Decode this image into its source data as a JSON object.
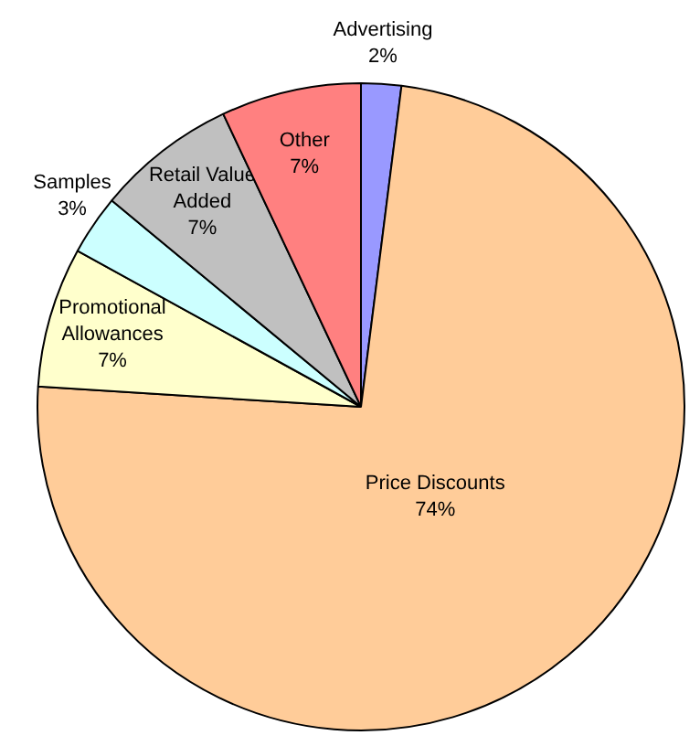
{
  "chart_data": {
    "type": "pie",
    "categories": [
      "Advertising",
      "Price Discounts",
      "Promotional Allowances",
      "Samples",
      "Retail Value Added",
      "Other"
    ],
    "values": [
      2,
      74,
      7,
      3,
      7,
      7
    ],
    "colors": [
      "#9999ff",
      "#ffcc99",
      "#ffffcc",
      "#ccffff",
      "#c0c0c0",
      "#ff8080"
    ],
    "value_labels": [
      "2%",
      "74%",
      "7%",
      "3%",
      "7%",
      "7%"
    ],
    "legend": false
  }
}
